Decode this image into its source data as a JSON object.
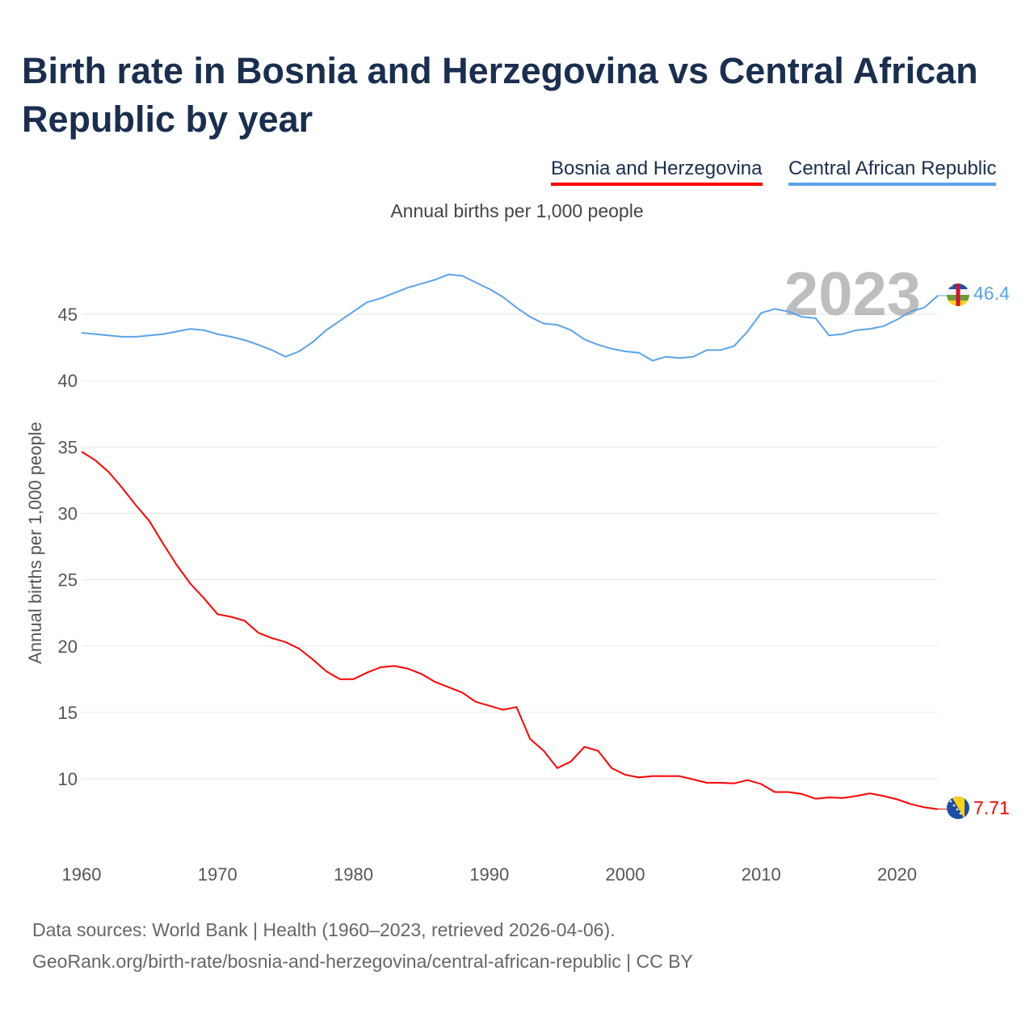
{
  "title": "Birth rate in Bosnia and Herzegovina vs Central African Republic by year",
  "legend": {
    "bih": "Bosnia and Herzegovina",
    "car": "Central African Republic"
  },
  "subtitle": "Annual births per 1,000 people",
  "year_watermark": "2023",
  "footer": {
    "line1": "Data sources: World Bank | Health (1960–2023, retrieved 2026-04-06).",
    "line2": "GeoRank.org/birth-rate/bosnia-and-herzegovina/central-african-republic | CC BY"
  },
  "chart_data": {
    "type": "line",
    "title": "Birth rate in Bosnia and Herzegovina vs Central African Republic by year",
    "xlabel": "",
    "ylabel": "Annual births per 1,000 people",
    "xlim": [
      1960,
      2023
    ],
    "ylim": [
      5,
      49
    ],
    "x_ticks": [
      1960,
      1970,
      1980,
      1990,
      2000,
      2010,
      2020
    ],
    "y_ticks": [
      10,
      15,
      20,
      25,
      30,
      35,
      40,
      45
    ],
    "grid": true,
    "legend_position": "top-right",
    "x": [
      1960,
      1961,
      1962,
      1963,
      1964,
      1965,
      1966,
      1967,
      1968,
      1969,
      1970,
      1971,
      1972,
      1973,
      1974,
      1975,
      1976,
      1977,
      1978,
      1979,
      1980,
      1981,
      1982,
      1983,
      1984,
      1985,
      1986,
      1987,
      1988,
      1989,
      1990,
      1991,
      1992,
      1993,
      1994,
      1995,
      1996,
      1997,
      1998,
      1999,
      2000,
      2001,
      2002,
      2003,
      2004,
      2005,
      2006,
      2007,
      2008,
      2009,
      2010,
      2011,
      2012,
      2013,
      2014,
      2015,
      2016,
      2017,
      2018,
      2019,
      2020,
      2021,
      2022,
      2023
    ],
    "series": [
      {
        "name": "Bosnia and Herzegovina",
        "color": "#ff0000",
        "end_label": "7.71",
        "flag": "bosnia-flag",
        "values": [
          34.65,
          34.0,
          33.1,
          31.9,
          30.6,
          29.4,
          27.7,
          26.1,
          24.7,
          23.6,
          22.4,
          22.2,
          21.9,
          21.0,
          20.6,
          20.3,
          19.8,
          19.0,
          18.1,
          17.5,
          17.5,
          18.0,
          18.4,
          18.5,
          18.3,
          17.9,
          17.3,
          16.9,
          16.5,
          15.8,
          15.5,
          15.2,
          15.4,
          13.0,
          12.1,
          10.8,
          11.3,
          12.4,
          12.1,
          10.8,
          10.3,
          10.1,
          10.2,
          10.2,
          10.2,
          9.95,
          9.7,
          9.7,
          9.65,
          9.9,
          9.6,
          9.0,
          9.0,
          8.85,
          8.5,
          8.6,
          8.55,
          8.7,
          8.9,
          8.7,
          8.45,
          8.1,
          7.85,
          7.71
        ]
      },
      {
        "name": "Central African Republic",
        "color": "#5ba3ea",
        "end_label": "46.4",
        "flag": "car-flag",
        "values": [
          43.6,
          43.5,
          43.4,
          43.3,
          43.3,
          43.4,
          43.5,
          43.7,
          43.9,
          43.8,
          43.5,
          43.3,
          43.05,
          42.7,
          42.3,
          41.8,
          42.2,
          42.9,
          43.8,
          44.5,
          45.2,
          45.9,
          46.2,
          46.6,
          47.0,
          47.3,
          47.6,
          48.0,
          47.9,
          47.4,
          46.9,
          46.3,
          45.5,
          44.8,
          44.3,
          44.2,
          43.8,
          43.1,
          42.7,
          42.4,
          42.2,
          42.1,
          41.5,
          41.8,
          41.7,
          41.8,
          42.3,
          42.3,
          42.6,
          43.7,
          45.1,
          45.4,
          45.2,
          44.8,
          44.7,
          43.4,
          43.5,
          43.8,
          43.9,
          44.1,
          44.6,
          45.2,
          45.5,
          46.4
        ]
      }
    ]
  }
}
